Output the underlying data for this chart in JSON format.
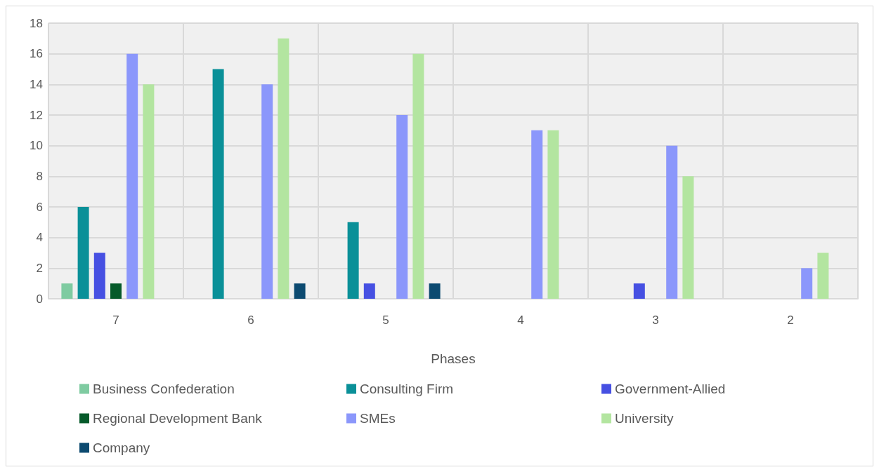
{
  "chart_data": {
    "type": "bar",
    "xlabel": "Phases",
    "categories": [
      "7",
      "6",
      "5",
      "4",
      "3",
      "2"
    ],
    "series": [
      {
        "name": "Business Confederation",
        "color": "#7fcba1",
        "values": [
          1,
          0,
          0,
          0,
          0,
          0
        ]
      },
      {
        "name": "Consulting Firm",
        "color": "#0a9098",
        "values": [
          6,
          15,
          5,
          0,
          0,
          0
        ]
      },
      {
        "name": "Government-Allied",
        "color": "#4650e2",
        "values": [
          3,
          0,
          1,
          0,
          1,
          0
        ]
      },
      {
        "name": "Regional Development Bank",
        "color": "#065a2a",
        "values": [
          1,
          0,
          0,
          0,
          0,
          0
        ]
      },
      {
        "name": "SMEs",
        "color": "#8b97fb",
        "values": [
          16,
          14,
          12,
          11,
          10,
          2
        ]
      },
      {
        "name": "University",
        "color": "#b3e5a0",
        "values": [
          14,
          17,
          16,
          11,
          8,
          3
        ]
      },
      {
        "name": "Company",
        "color": "#0c4a70",
        "values": [
          0,
          1,
          1,
          0,
          0,
          0
        ]
      }
    ],
    "ylim": [
      0,
      18
    ],
    "yticks": [
      0,
      2,
      4,
      6,
      8,
      10,
      12,
      14,
      16,
      18
    ],
    "grid": true,
    "legend": "bottom"
  }
}
